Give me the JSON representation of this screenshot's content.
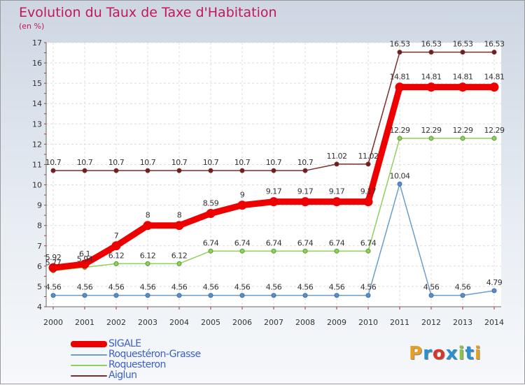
{
  "chart_data": {
    "type": "line",
    "title": "Evolution du Taux de Taxe d'Habitation",
    "subtitle": "(en %)",
    "categories": [
      "2000",
      "2001",
      "2002",
      "2003",
      "2004",
      "2005",
      "2006",
      "2007",
      "2008",
      "2009",
      "2010",
      "2011",
      "2012",
      "2013",
      "2014"
    ],
    "ylim": [
      4,
      17
    ],
    "yticks": [
      4,
      5,
      6,
      7,
      8,
      9,
      10,
      11,
      12,
      13,
      14,
      15,
      16,
      17
    ],
    "series": [
      {
        "name": "Aiglun",
        "color": "#7a2e2e",
        "values": [
          10.7,
          10.7,
          10.7,
          10.7,
          10.7,
          10.7,
          10.7,
          10.7,
          10.7,
          11.02,
          11.02,
          16.53,
          16.53,
          16.53,
          16.53
        ],
        "labels": [
          "10.7",
          "10.7",
          "10.7",
          "10.7",
          "10.7",
          "10.7",
          "10.7",
          "10.7",
          "10.7",
          "11.02",
          "11.02",
          "16.53",
          "16.53",
          "16.53",
          "16.53"
        ]
      },
      {
        "name": "Roquesteron",
        "color": "#8ed05c",
        "values": [
          5.77,
          5.94,
          6.12,
          6.12,
          6.12,
          6.74,
          6.74,
          6.74,
          6.74,
          6.74,
          6.74,
          12.29,
          12.29,
          12.29,
          12.29
        ],
        "labels": [
          "5.77",
          "5.94",
          "6.12",
          "6.12",
          "6.12",
          "6.74",
          "6.74",
          "6.74",
          "6.74",
          "6.74",
          "6.74",
          "12.29",
          "12.29",
          "12.29",
          "12.29"
        ]
      },
      {
        "name": "Roquestéron-Grasse",
        "color": "#6a9ecf",
        "values": [
          4.56,
          4.56,
          4.56,
          4.56,
          4.56,
          4.56,
          4.56,
          4.56,
          4.56,
          4.56,
          4.56,
          10.04,
          4.56,
          4.56,
          4.79
        ],
        "labels": [
          "4.56",
          "4.56",
          "4.56",
          "4.56",
          "4.56",
          "4.56",
          "4.56",
          "4.56",
          "4.56",
          "4.56",
          "4.56",
          "10.04",
          "4.56",
          "4.56",
          "4.79"
        ]
      },
      {
        "name": "SIGALE",
        "color": "#ee0000",
        "values": [
          5.92,
          6.1,
          7,
          8,
          8,
          8.59,
          9,
          9.17,
          9.17,
          9.17,
          9.17,
          14.81,
          14.81,
          14.81,
          14.81
        ],
        "labels": [
          "5.92",
          "6.1",
          "7",
          "8",
          "8",
          "8.59",
          "9",
          "9.17",
          "9.17",
          "9.17",
          "9.17",
          "14.81",
          "14.81",
          "14.81",
          "14.81"
        ]
      }
    ],
    "legend": [
      "SIGALE",
      "Roquestéron-Grasse",
      "Roquesteron",
      "Aiglun"
    ]
  },
  "logo": {
    "text": "Proxiti"
  }
}
